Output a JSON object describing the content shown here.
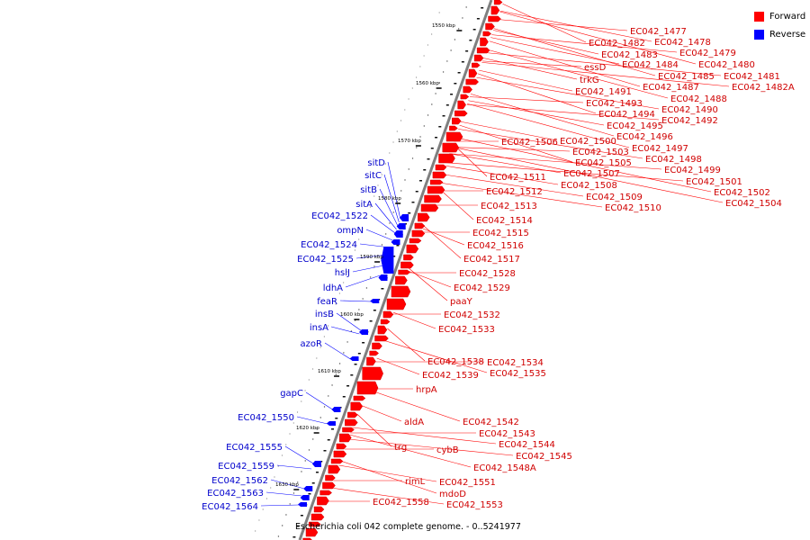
{
  "legend": [
    {
      "label": "Forward",
      "color": "#ff0000"
    },
    {
      "label": "Reverse",
      "color": "#0000ff"
    }
  ],
  "caption": "Escherichia coli 042 complete genome. - 0..5241977",
  "ticks": [
    "1550 kbp",
    "1560 kbp",
    "1570 kbp",
    "1580 kbp",
    "1590 kbp",
    "1600 kbp",
    "1610 kbp",
    "1620 kbp",
    "1630 kbp"
  ],
  "forward_labels": [
    "EC042_1477",
    "EC042_1478",
    "EC042_1482",
    "EC042_1479",
    "EC042_1483",
    "EC042_1480",
    "essD",
    "EC042_1484",
    "EC042_1485",
    "EC042_1481",
    "trkG",
    "EC042_1487",
    "EC042_1482A",
    "EC042_1491",
    "EC042_1488",
    "EC042_1493",
    "EC042_1490",
    "EC042_1494",
    "EC042_1492",
    "EC042_1495",
    "EC042_1496",
    "EC042_1506",
    "EC042_1500",
    "EC042_1497",
    "EC042_1503",
    "EC042_1498",
    "EC042_1505",
    "EC042_1499",
    "EC042_1507",
    "EC042_1511",
    "EC042_1501",
    "EC042_1508",
    "EC042_1502",
    "EC042_1512",
    "EC042_1509",
    "EC042_1504",
    "EC042_1513",
    "EC042_1510",
    "EC042_1514",
    "EC042_1515",
    "EC042_1516",
    "EC042_1517",
    "EC042_1528",
    "EC042_1529",
    "paaY",
    "EC042_1532",
    "EC042_1533",
    "EC042_1538",
    "EC042_1534",
    "EC042_1539",
    "EC042_1535",
    "hrpA",
    "aldA",
    "EC042_1542",
    "EC042_1543",
    "EC042_1544",
    "trg",
    "cybB",
    "EC042_1545",
    "EC042_1548A",
    "rimL",
    "EC042_1551",
    "mdoD",
    "EC042_1558",
    "EC042_1553"
  ],
  "reverse_labels": [
    "sitD",
    "sitC",
    "sitB",
    "sitA",
    "EC042_1522",
    "ompN",
    "EC042_1524",
    "EC042_1525",
    "hslJ",
    "ldhA",
    "feaR",
    "insB",
    "insA",
    "azoR",
    "gapC",
    "EC042_1550",
    "EC042_1555",
    "EC042_1559",
    "EC042_1562",
    "EC042_1563",
    "EC042_1564"
  ]
}
